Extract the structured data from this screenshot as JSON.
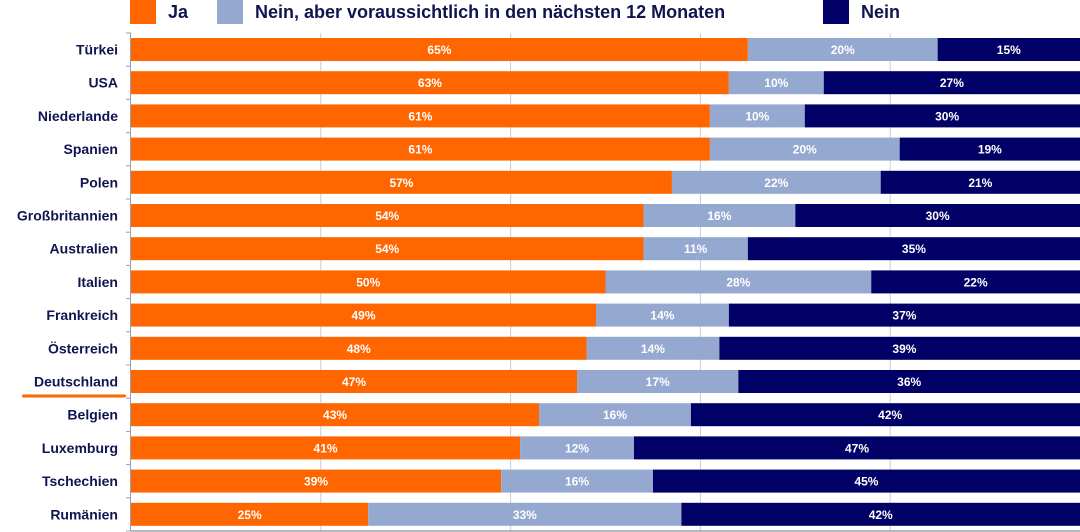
{
  "chart_data": {
    "type": "bar",
    "orientation": "horizontal",
    "stacked": true,
    "percent_stacked": true,
    "title": "",
    "xlabel": "",
    "ylabel": "",
    "xlim": [
      0,
      100
    ],
    "grid": true,
    "legend_position": "top",
    "highlight_category": "Deutschland",
    "categories": [
      "Türkei",
      "USA",
      "Niederlande",
      "Spanien",
      "Polen",
      "Großbritannien",
      "Australien",
      "Italien",
      "Frankreich",
      "Österreich",
      "Deutschland",
      "Belgien",
      "Luxemburg",
      "Tschechien",
      "Rumänien"
    ],
    "series": [
      {
        "name": "Ja",
        "color": "#ff6600",
        "values": [
          65,
          63,
          61,
          61,
          57,
          54,
          54,
          50,
          49,
          48,
          47,
          43,
          41,
          39,
          25
        ]
      },
      {
        "name": "Nein, aber voraussichtlich in den nächsten 12 Monaten",
        "color": "#95a8cf",
        "values": [
          20,
          10,
          10,
          20,
          22,
          16,
          11,
          28,
          14,
          14,
          17,
          16,
          12,
          16,
          33
        ]
      },
      {
        "name": "Nein",
        "color": "#000066",
        "values": [
          15,
          27,
          30,
          19,
          21,
          30,
          35,
          22,
          37,
          39,
          36,
          42,
          47,
          45,
          42
        ]
      }
    ],
    "value_suffix": "%"
  },
  "legend": {
    "items": [
      {
        "label": "Ja",
        "color": "#ff6600"
      },
      {
        "label": "Nein, aber voraussichtlich in den nächsten 12 Monaten",
        "color": "#95a8cf"
      },
      {
        "label": "Nein",
        "color": "#000066"
      }
    ]
  },
  "colors": {
    "highlight_underline": "#ff6600",
    "label_text": "#101450",
    "gridline": "#c8ccd8"
  }
}
